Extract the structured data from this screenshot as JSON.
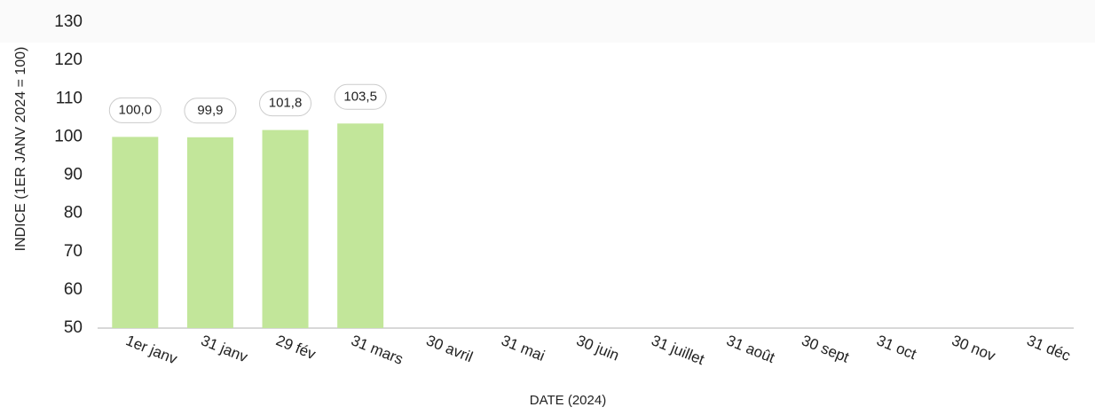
{
  "chart_data": {
    "type": "bar",
    "categories": [
      "1er janv",
      "31 janv",
      "29 fév",
      "31 mars",
      "30 avril",
      "31 mai",
      "30 juin",
      "31 juillet",
      "31 août",
      "30 sept",
      "31 oct",
      "30 nov",
      "31 déc"
    ],
    "values": [
      100.0,
      99.9,
      101.8,
      103.5,
      null,
      null,
      null,
      null,
      null,
      null,
      null,
      null,
      null
    ],
    "value_labels": [
      "100,0",
      "99,9",
      "101,8",
      "103,5",
      null,
      null,
      null,
      null,
      null,
      null,
      null,
      null,
      null
    ],
    "color": "#c2e69a",
    "ylim": [
      50,
      130
    ],
    "yticks": [
      50,
      60,
      70,
      80,
      90,
      100,
      110,
      120,
      130
    ],
    "xlabel": "DATE (2024)",
    "ylabel": "INDICE (1ER JANV 2024 = 100)"
  }
}
